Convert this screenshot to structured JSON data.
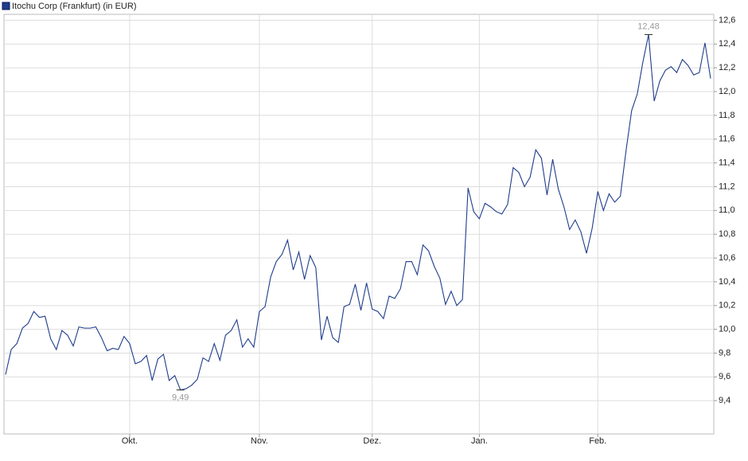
{
  "chart_data": {
    "type": "line",
    "legend_label": "Itochu Corp (Frankfurt) (in EUR)",
    "categories": [
      null,
      null,
      null,
      null,
      null,
      null,
      null,
      null,
      null,
      null,
      null,
      null,
      null,
      null,
      null,
      null,
      null,
      null,
      null,
      null,
      null,
      null,
      "Okt.",
      null,
      null,
      null,
      null,
      null,
      null,
      null,
      null,
      null,
      null,
      null,
      null,
      null,
      null,
      null,
      null,
      null,
      null,
      null,
      null,
      null,
      null,
      "Nov.",
      null,
      null,
      null,
      null,
      null,
      null,
      null,
      null,
      null,
      null,
      null,
      null,
      null,
      null,
      null,
      null,
      null,
      null,
      null,
      "Dez.",
      null,
      null,
      null,
      null,
      null,
      null,
      null,
      null,
      null,
      null,
      null,
      null,
      null,
      null,
      null,
      null,
      null,
      null,
      "Jan.",
      null,
      null,
      null,
      null,
      null,
      null,
      null,
      null,
      null,
      null,
      null,
      null,
      null,
      null,
      null,
      null,
      null,
      null,
      null,
      null,
      "Feb.",
      null,
      null,
      null,
      null,
      null,
      null,
      null,
      null,
      null,
      null,
      null,
      null,
      null,
      null,
      null,
      null,
      null,
      null,
      null,
      null
    ],
    "series": [
      {
        "name": "Itochu Corp (Frankfurt)",
        "color": "#1f3d8c",
        "values": [
          9.62,
          9.83,
          9.88,
          10.01,
          10.05,
          10.15,
          10.1,
          10.11,
          9.92,
          9.83,
          9.99,
          9.95,
          9.86,
          10.02,
          10.01,
          10.01,
          10.02,
          9.93,
          9.82,
          9.84,
          9.83,
          9.94,
          9.88,
          9.71,
          9.73,
          9.78,
          9.57,
          9.75,
          9.79,
          9.57,
          9.61,
          9.49,
          9.5,
          9.53,
          9.58,
          9.76,
          9.73,
          9.88,
          9.74,
          9.95,
          9.99,
          10.08,
          9.85,
          9.92,
          9.85,
          10.15,
          10.19,
          10.44,
          10.57,
          10.63,
          10.75,
          10.5,
          10.65,
          10.42,
          10.62,
          10.52,
          9.91,
          10.11,
          9.93,
          9.89,
          10.19,
          10.21,
          10.38,
          10.16,
          10.39,
          10.17,
          10.15,
          10.09,
          10.28,
          10.26,
          10.34,
          10.57,
          10.57,
          10.46,
          10.71,
          10.66,
          10.53,
          10.43,
          10.21,
          10.32,
          10.2,
          10.25,
          11.19,
          10.99,
          10.93,
          11.06,
          11.03,
          10.99,
          10.97,
          11.05,
          11.36,
          11.32,
          11.2,
          11.28,
          11.51,
          11.44,
          11.13,
          11.43,
          11.18,
          11.03,
          10.84,
          10.92,
          10.82,
          10.64,
          10.85,
          11.16,
          11.0,
          11.14,
          11.07,
          11.12,
          11.5,
          11.84,
          11.98,
          12.25,
          12.48,
          11.92,
          12.09,
          12.18,
          12.21,
          12.16,
          12.27,
          12.22,
          12.14,
          12.16,
          12.41,
          12.11
        ]
      }
    ],
    "high": {
      "value": 12.48,
      "label": "12,48"
    },
    "low": {
      "value": 9.49,
      "label": "9,49"
    },
    "ylim": [
      9.12,
      12.65
    ],
    "yticks": [
      {
        "value": 9.4,
        "label": "9,4"
      },
      {
        "value": 9.6,
        "label": "9,6"
      },
      {
        "value": 9.8,
        "label": "9,8"
      },
      {
        "value": 10.0,
        "label": "10,0"
      },
      {
        "value": 10.2,
        "label": "10,2"
      },
      {
        "value": 10.4,
        "label": "10,4"
      },
      {
        "value": 10.6,
        "label": "10,6"
      },
      {
        "value": 10.8,
        "label": "10,8"
      },
      {
        "value": 11.0,
        "label": "11,0"
      },
      {
        "value": 11.2,
        "label": "11,2"
      },
      {
        "value": 11.4,
        "label": "11,4"
      },
      {
        "value": 11.6,
        "label": "11,6"
      },
      {
        "value": 11.8,
        "label": "11,8"
      },
      {
        "value": 12.0,
        "label": "12,0"
      },
      {
        "value": 12.2,
        "label": "12,2"
      },
      {
        "value": 12.4,
        "label": "12,4"
      },
      {
        "value": 12.6,
        "label": "12,6"
      }
    ],
    "grid": true
  }
}
